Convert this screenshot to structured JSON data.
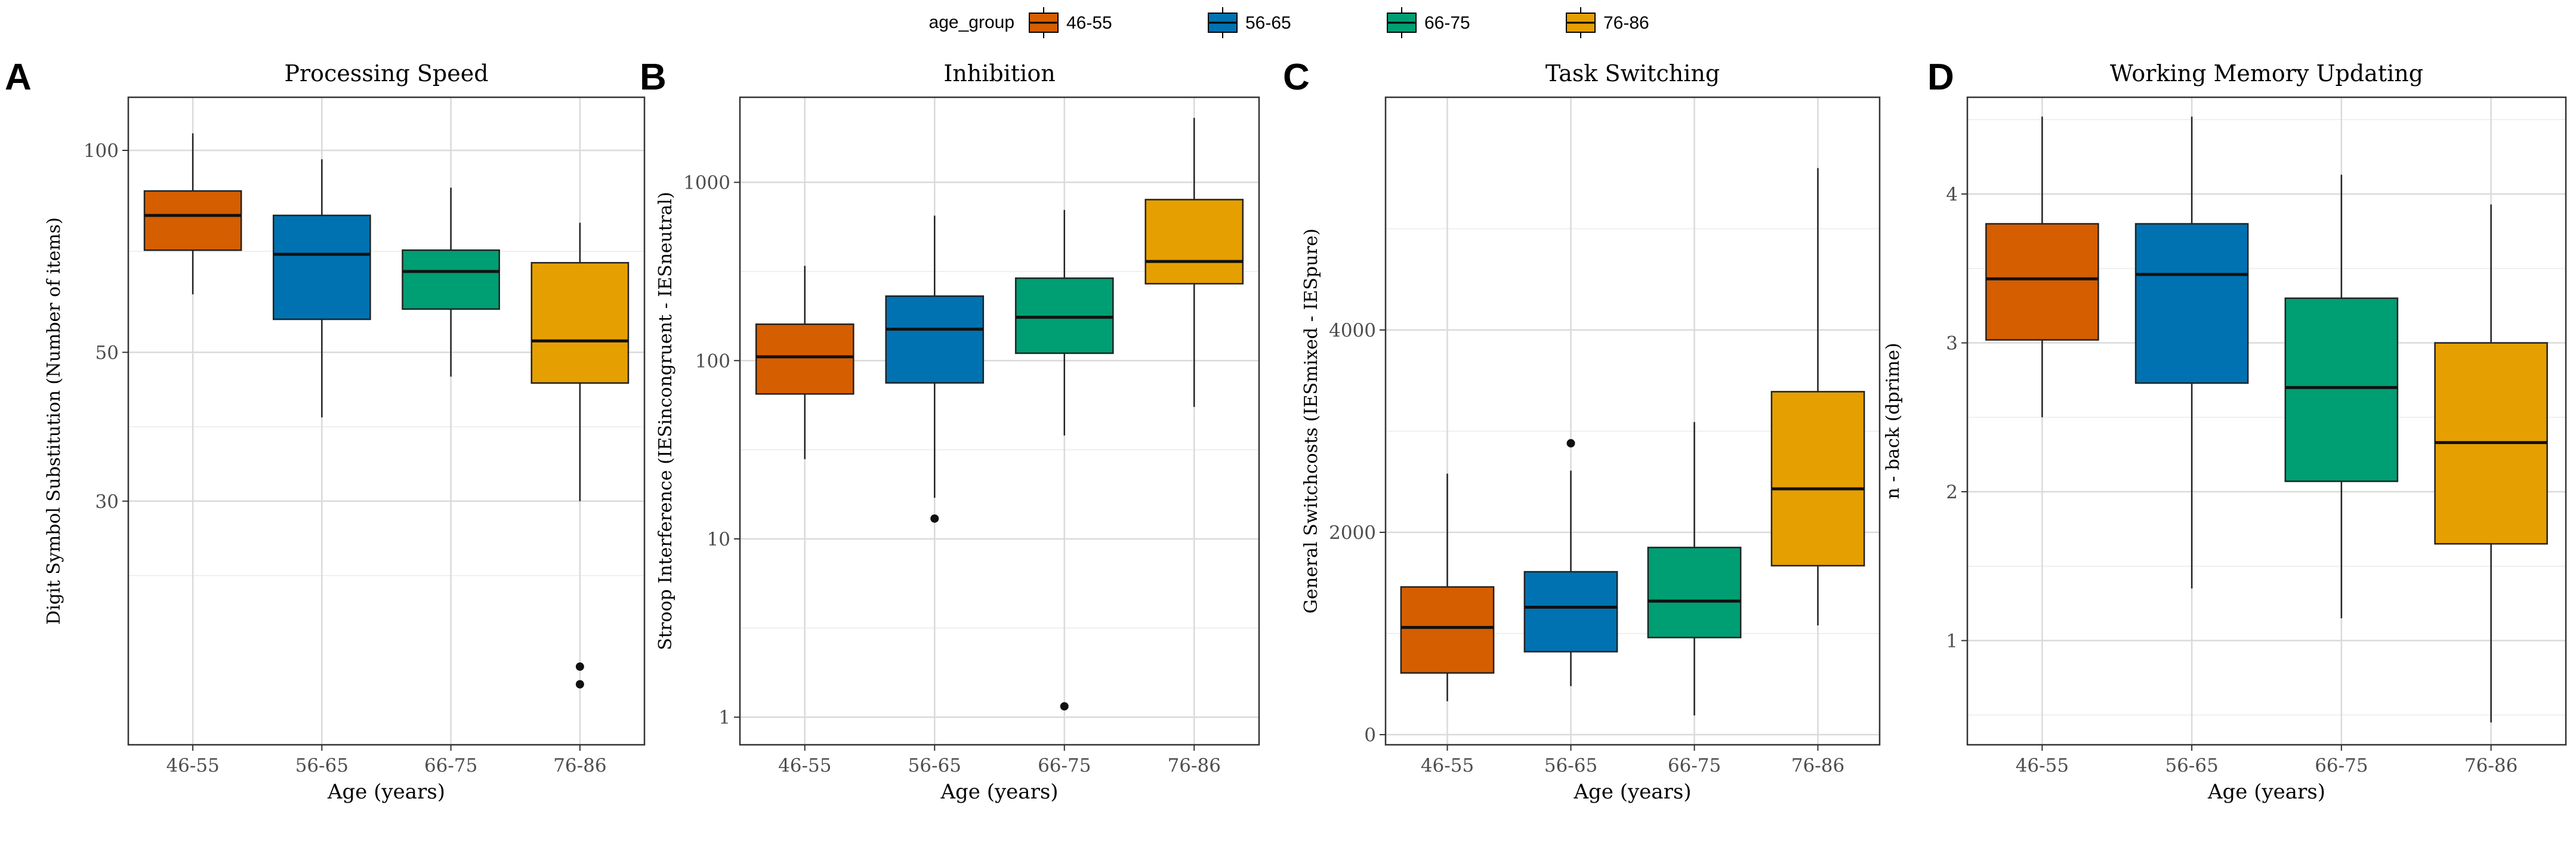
{
  "legend": {
    "title": "age_group",
    "items": [
      {
        "label": "46-55",
        "color": "#D55E00"
      },
      {
        "label": "56-65",
        "color": "#0072B2"
      },
      {
        "label": "66-75",
        "color": "#009E73"
      },
      {
        "label": "76-86",
        "color": "#E69F00"
      }
    ]
  },
  "chart_data": [
    {
      "type": "box",
      "panel_label": "A",
      "title": "Processing Speed",
      "xlabel": "Age (years)",
      "ylabel": "Digit Symbol Substitution (Number of items)",
      "yscale": "log",
      "ylim": [
        13,
        120
      ],
      "yticks": [
        30,
        50,
        100
      ],
      "categories": [
        "46-55",
        "56-65",
        "66-75",
        "76-86"
      ],
      "boxes": [
        {
          "min": 61,
          "q1": 71,
          "median": 80,
          "q3": 87,
          "max": 106,
          "outliers": []
        },
        {
          "min": 40,
          "q1": 56,
          "median": 70,
          "q3": 80,
          "max": 97,
          "outliers": []
        },
        {
          "min": 46,
          "q1": 58,
          "median": 66,
          "q3": 71,
          "max": 88,
          "outliers": []
        },
        {
          "min": 30,
          "q1": 45,
          "median": 52,
          "q3": 68,
          "max": 78,
          "outliers": [
            17,
            16
          ]
        }
      ]
    },
    {
      "type": "box",
      "panel_label": "B",
      "title": "Inhibition",
      "xlabel": "Age (years)",
      "ylabel": "Stroop Interference (IESincongruent - IESneutral)",
      "yscale": "log",
      "ylim": [
        0.7,
        3000
      ],
      "yticks": [
        1,
        10,
        100,
        1000
      ],
      "categories": [
        "46-55",
        "56-65",
        "66-75",
        "76-86"
      ],
      "boxes": [
        {
          "min": 28,
          "q1": 65,
          "median": 105,
          "q3": 160,
          "max": 340,
          "outliers": []
        },
        {
          "min": 17,
          "q1": 75,
          "median": 150,
          "q3": 230,
          "max": 650,
          "outliers": [
            13
          ]
        },
        {
          "min": 38,
          "q1": 110,
          "median": 175,
          "q3": 290,
          "max": 700,
          "outliers": [
            1.15
          ]
        },
        {
          "min": 55,
          "q1": 270,
          "median": 360,
          "q3": 800,
          "max": 2300,
          "outliers": []
        }
      ]
    },
    {
      "type": "box",
      "panel_label": "C",
      "title": "Task Switching",
      "xlabel": "Age (years)",
      "ylabel": "General Switchcosts (IESmixed - IESpure)",
      "yscale": "linear",
      "ylim": [
        -100,
        6300
      ],
      "yticks": [
        0,
        2000,
        4000
      ],
      "categories": [
        "46-55",
        "56-65",
        "66-75",
        "76-86"
      ],
      "boxes": [
        {
          "min": 330,
          "q1": 610,
          "median": 1060,
          "q3": 1460,
          "max": 2580,
          "outliers": []
        },
        {
          "min": 480,
          "q1": 820,
          "median": 1260,
          "q3": 1610,
          "max": 2610,
          "outliers": [
            2880
          ]
        },
        {
          "min": 190,
          "q1": 960,
          "median": 1320,
          "q3": 1850,
          "max": 3090,
          "outliers": []
        },
        {
          "min": 1080,
          "q1": 1670,
          "median": 2430,
          "q3": 3390,
          "max": 5600,
          "outliers": []
        }
      ]
    },
    {
      "type": "box",
      "panel_label": "D",
      "title": "Working Memory Updating",
      "xlabel": "Age (years)",
      "ylabel": "n - back (dprime)",
      "yscale": "linear",
      "ylim": [
        0.3,
        4.65
      ],
      "yticks": [
        1,
        2,
        3,
        4
      ],
      "categories": [
        "46-55",
        "56-65",
        "66-75",
        "76-86"
      ],
      "boxes": [
        {
          "min": 2.5,
          "q1": 3.02,
          "median": 3.43,
          "q3": 3.8,
          "max": 4.52,
          "outliers": []
        },
        {
          "min": 1.35,
          "q1": 2.73,
          "median": 3.46,
          "q3": 3.8,
          "max": 4.52,
          "outliers": []
        },
        {
          "min": 1.15,
          "q1": 2.07,
          "median": 2.7,
          "q3": 3.3,
          "max": 4.13,
          "outliers": []
        },
        {
          "min": 0.45,
          "q1": 1.65,
          "median": 2.33,
          "q3": 3.0,
          "max": 3.93,
          "outliers": []
        }
      ]
    }
  ]
}
